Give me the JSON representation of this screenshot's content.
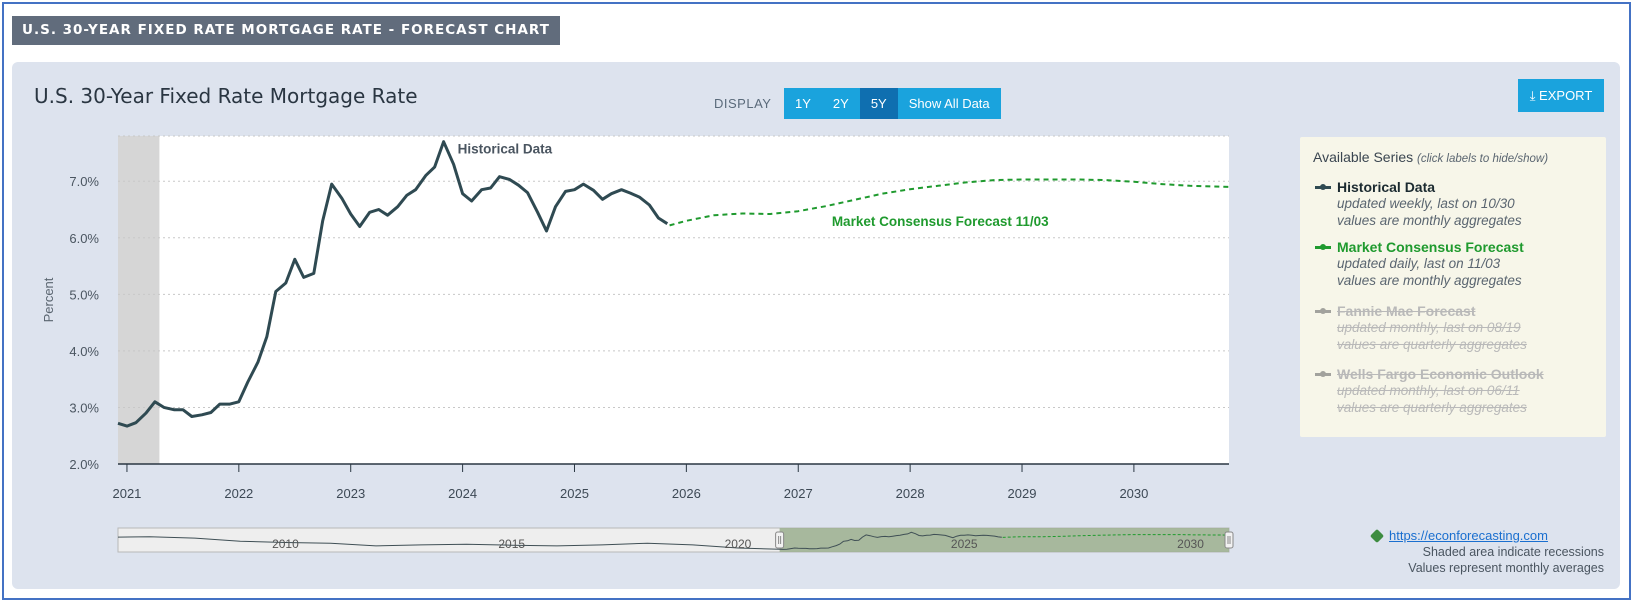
{
  "banner": "U.S. 30-YEAR FIXED RATE MORTGAGE RATE - FORECAST CHART",
  "chart_title": "U.S. 30-Year Fixed Rate Mortgage Rate",
  "display_label": "DISPLAY",
  "range_buttons": [
    {
      "label": "1Y",
      "active": false
    },
    {
      "label": "2Y",
      "active": false
    },
    {
      "label": "5Y",
      "active": true
    },
    {
      "label": "Show All Data",
      "active": false
    }
  ],
  "export_label": "⤓ EXPORT",
  "legend": {
    "title": "Available Series",
    "title_hint": "(click labels to hide/show)",
    "items": [
      {
        "name": "Historical Data",
        "desc1": "updated weekly, last on 10/30",
        "desc2": "values are monthly aggregates",
        "color": "#2f4a52",
        "enabled": true
      },
      {
        "name": "Market Consensus Forecast",
        "desc1": "updated daily, last on 11/03",
        "desc2": "values are monthly aggregates",
        "color": "#1f9a2e",
        "enabled": true
      },
      {
        "name": "Fannie Mae Forecast",
        "desc1": "updated monthly, last on 08/19",
        "desc2": "values are quarterly aggregates",
        "color": "#6b6b6b",
        "enabled": false
      },
      {
        "name": "Wells Fargo Economic Outlook",
        "desc1": "updated monthly, last on 06/11",
        "desc2": "values are quarterly aggregates",
        "color": "#6b6b6b",
        "enabled": false
      }
    ]
  },
  "footer": {
    "link": "https://econforecasting.com",
    "note1": "Shaded area indicate recessions",
    "note2": "Values represent monthly averages"
  },
  "chart_data": {
    "type": "line",
    "ylabel": "Percent",
    "yticks": [
      "2.0%",
      "3.0%",
      "4.0%",
      "5.0%",
      "6.0%",
      "7.0%"
    ],
    "ylim": [
      2.0,
      7.8
    ],
    "xlim": [
      2020.92,
      2030.85
    ],
    "xticks": [
      "2021",
      "2022",
      "2023",
      "2024",
      "2025",
      "2026",
      "2027",
      "2028",
      "2029",
      "2030"
    ],
    "grid": "horizontal dotted",
    "recession_shading": [
      [
        2020.92,
        2021.29
      ]
    ],
    "series": [
      {
        "name": "Historical Data",
        "color": "#2f4a52",
        "style": "solid",
        "points": [
          [
            2020.92,
            2.72
          ],
          [
            2021.0,
            2.67
          ],
          [
            2021.08,
            2.73
          ],
          [
            2021.17,
            2.9
          ],
          [
            2021.25,
            3.1
          ],
          [
            2021.33,
            3.0
          ],
          [
            2021.42,
            2.96
          ],
          [
            2021.5,
            2.96
          ],
          [
            2021.58,
            2.84
          ],
          [
            2021.67,
            2.87
          ],
          [
            2021.75,
            2.91
          ],
          [
            2021.83,
            3.06
          ],
          [
            2021.92,
            3.06
          ],
          [
            2022.0,
            3.1
          ],
          [
            2022.08,
            3.45
          ],
          [
            2022.17,
            3.8
          ],
          [
            2022.25,
            4.25
          ],
          [
            2022.33,
            5.05
          ],
          [
            2022.42,
            5.2
          ],
          [
            2022.5,
            5.62
          ],
          [
            2022.58,
            5.3
          ],
          [
            2022.67,
            5.37
          ],
          [
            2022.75,
            6.3
          ],
          [
            2022.83,
            6.95
          ],
          [
            2022.92,
            6.7
          ],
          [
            2023.0,
            6.42
          ],
          [
            2023.08,
            6.2
          ],
          [
            2023.17,
            6.45
          ],
          [
            2023.25,
            6.5
          ],
          [
            2023.33,
            6.4
          ],
          [
            2023.42,
            6.55
          ],
          [
            2023.5,
            6.75
          ],
          [
            2023.58,
            6.85
          ],
          [
            2023.67,
            7.1
          ],
          [
            2023.75,
            7.25
          ],
          [
            2023.83,
            7.7
          ],
          [
            2023.92,
            7.3
          ],
          [
            2024.0,
            6.78
          ],
          [
            2024.08,
            6.65
          ],
          [
            2024.17,
            6.85
          ],
          [
            2024.25,
            6.88
          ],
          [
            2024.33,
            7.08
          ],
          [
            2024.42,
            7.03
          ],
          [
            2024.5,
            6.93
          ],
          [
            2024.58,
            6.8
          ],
          [
            2024.67,
            6.45
          ],
          [
            2024.75,
            6.12
          ],
          [
            2024.83,
            6.55
          ],
          [
            2024.92,
            6.82
          ],
          [
            2025.0,
            6.85
          ],
          [
            2025.08,
            6.95
          ],
          [
            2025.17,
            6.84
          ],
          [
            2025.25,
            6.68
          ],
          [
            2025.33,
            6.78
          ],
          [
            2025.42,
            6.85
          ],
          [
            2025.5,
            6.79
          ],
          [
            2025.58,
            6.72
          ],
          [
            2025.67,
            6.58
          ],
          [
            2025.75,
            6.35
          ],
          [
            2025.83,
            6.25
          ]
        ]
      },
      {
        "name": "Market Consensus Forecast",
        "color": "#1f9a2e",
        "style": "dashed",
        "label": "Market Consensus Forecast 11/03",
        "points": [
          [
            2025.85,
            6.22
          ],
          [
            2026.0,
            6.3
          ],
          [
            2026.25,
            6.4
          ],
          [
            2026.5,
            6.43
          ],
          [
            2026.75,
            6.42
          ],
          [
            2027.0,
            6.47
          ],
          [
            2027.25,
            6.56
          ],
          [
            2027.5,
            6.67
          ],
          [
            2027.75,
            6.78
          ],
          [
            2028.0,
            6.86
          ],
          [
            2028.25,
            6.92
          ],
          [
            2028.5,
            6.98
          ],
          [
            2028.75,
            7.02
          ],
          [
            2029.0,
            7.03
          ],
          [
            2029.25,
            7.03
          ],
          [
            2029.5,
            7.03
          ],
          [
            2029.75,
            7.02
          ],
          [
            2030.0,
            6.99
          ],
          [
            2030.25,
            6.95
          ],
          [
            2030.5,
            6.92
          ],
          [
            2030.85,
            6.9
          ]
        ]
      }
    ],
    "annotations": [
      {
        "text": "Historical Data",
        "series": "Historical Data"
      },
      {
        "text": "Market Consensus Forecast 11/03",
        "series": "Market Consensus Forecast"
      }
    ],
    "navigator": {
      "xticks": [
        "2010",
        "2015",
        "2020",
        "2025",
        "2030"
      ]
    }
  }
}
